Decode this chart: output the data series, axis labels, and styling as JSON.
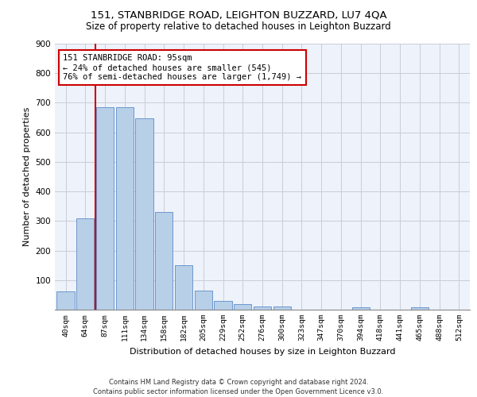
{
  "title1": "151, STANBRIDGE ROAD, LEIGHTON BUZZARD, LU7 4QA",
  "title2": "Size of property relative to detached houses in Leighton Buzzard",
  "xlabel": "Distribution of detached houses by size in Leighton Buzzard",
  "ylabel": "Number of detached properties",
  "categories": [
    "40sqm",
    "64sqm",
    "87sqm",
    "111sqm",
    "134sqm",
    "158sqm",
    "182sqm",
    "205sqm",
    "229sqm",
    "252sqm",
    "276sqm",
    "300sqm",
    "323sqm",
    "347sqm",
    "370sqm",
    "394sqm",
    "418sqm",
    "441sqm",
    "465sqm",
    "488sqm",
    "512sqm"
  ],
  "values": [
    62,
    310,
    685,
    685,
    648,
    330,
    150,
    65,
    30,
    20,
    12,
    10,
    0,
    0,
    0,
    8,
    0,
    0,
    8,
    0,
    0
  ],
  "bar_color": "#b8cfe8",
  "bar_edge_color": "#5b8cc8",
  "vline_x": 1.5,
  "vline_color": "#cc0000",
  "annotation_text": "151 STANBRIDGE ROAD: 95sqm\n← 24% of detached houses are smaller (545)\n76% of semi-detached houses are larger (1,749) →",
  "annotation_box_color": "#cc0000",
  "footer": "Contains HM Land Registry data © Crown copyright and database right 2024.\nContains public sector information licensed under the Open Government Licence v3.0.",
  "ylim": [
    0,
    900
  ],
  "yticks": [
    0,
    100,
    200,
    300,
    400,
    500,
    600,
    700,
    800,
    900
  ],
  "bg_color": "#eef2fa",
  "grid_color": "#c8cdd8"
}
